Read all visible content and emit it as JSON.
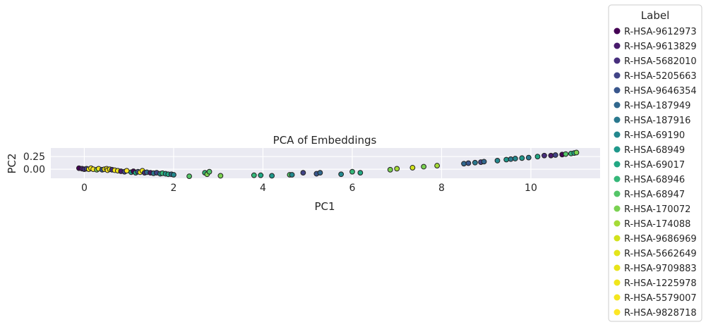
{
  "chart_data": {
    "type": "scatter",
    "title": "PCA of Embeddings",
    "xlabel": "PC1",
    "ylabel": "PC2",
    "xlim": [
      -0.75,
      11.55
    ],
    "ylim": [
      -0.18,
      0.42
    ],
    "xticks": [
      0,
      2,
      4,
      6,
      8,
      10
    ],
    "yticks": [
      0.0,
      0.25
    ],
    "ytick_labels": [
      "0.00",
      "0.25"
    ],
    "grid": true,
    "legend": {
      "title": "Label",
      "placement": "outside-right",
      "entries": [
        {
          "name": "R-HSA-9612973",
          "color": "#440154"
        },
        {
          "name": "R-HSA-9613829",
          "color": "#481a6c"
        },
        {
          "name": "R-HSA-5682010",
          "color": "#472f7d"
        },
        {
          "name": "R-HSA-5205663",
          "color": "#414487"
        },
        {
          "name": "R-HSA-9646354",
          "color": "#39568c"
        },
        {
          "name": "R-HSA-187949",
          "color": "#31688e"
        },
        {
          "name": "R-HSA-187916",
          "color": "#2a788e"
        },
        {
          "name": "R-HSA-69190",
          "color": "#23888e"
        },
        {
          "name": "R-HSA-68949",
          "color": "#1f988b"
        },
        {
          "name": "R-HSA-69017",
          "color": "#22a884"
        },
        {
          "name": "R-HSA-68946",
          "color": "#35b779"
        },
        {
          "name": "R-HSA-68947",
          "color": "#54c568"
        },
        {
          "name": "R-HSA-170072",
          "color": "#7ad151"
        },
        {
          "name": "R-HSA-174088",
          "color": "#a5db36"
        },
        {
          "name": "R-HSA-9686969",
          "color": "#d2e21b"
        },
        {
          "name": "R-HSA-5662649",
          "color": "#e4e51a"
        },
        {
          "name": "R-HSA-9709883",
          "color": "#e8e419"
        },
        {
          "name": "R-HSA-1225978",
          "color": "#f0e61c"
        },
        {
          "name": "R-HSA-5579007",
          "color": "#f4e61e"
        },
        {
          "name": "R-HSA-9828718",
          "color": "#fde725"
        }
      ]
    },
    "points": [
      {
        "x": -0.12,
        "y": 0.02,
        "c": 0
      },
      {
        "x": -0.05,
        "y": 0.01,
        "c": 1
      },
      {
        "x": 0.0,
        "y": 0.0,
        "c": 2
      },
      {
        "x": 0.05,
        "y": 0.01,
        "c": 3
      },
      {
        "x": 0.1,
        "y": 0.0,
        "c": 17
      },
      {
        "x": 0.15,
        "y": 0.02,
        "c": 18
      },
      {
        "x": 0.2,
        "y": 0.0,
        "c": 19
      },
      {
        "x": 0.28,
        "y": -0.01,
        "c": 12
      },
      {
        "x": 0.32,
        "y": 0.01,
        "c": 16
      },
      {
        "x": 0.4,
        "y": -0.01,
        "c": 4
      },
      {
        "x": 0.45,
        "y": 0.0,
        "c": 17
      },
      {
        "x": 0.5,
        "y": 0.01,
        "c": 18
      },
      {
        "x": 0.52,
        "y": -0.02,
        "c": 19
      },
      {
        "x": 0.57,
        "y": 0.0,
        "c": 16
      },
      {
        "x": 0.62,
        "y": -0.01,
        "c": 2
      },
      {
        "x": 0.68,
        "y": -0.02,
        "c": 18
      },
      {
        "x": 0.75,
        "y": -0.03,
        "c": 17
      },
      {
        "x": 0.82,
        "y": -0.04,
        "c": 1
      },
      {
        "x": 0.9,
        "y": -0.05,
        "c": 3
      },
      {
        "x": 0.95,
        "y": -0.03,
        "c": 19
      },
      {
        "x": 1.05,
        "y": -0.06,
        "c": 8
      },
      {
        "x": 1.1,
        "y": -0.04,
        "c": 0
      },
      {
        "x": 1.15,
        "y": -0.07,
        "c": 9
      },
      {
        "x": 1.2,
        "y": -0.05,
        "c": 4
      },
      {
        "x": 1.25,
        "y": -0.06,
        "c": 18
      },
      {
        "x": 1.3,
        "y": -0.03,
        "c": 17
      },
      {
        "x": 1.35,
        "y": -0.07,
        "c": 2
      },
      {
        "x": 1.4,
        "y": -0.06,
        "c": 5
      },
      {
        "x": 1.48,
        "y": -0.07,
        "c": 1
      },
      {
        "x": 1.55,
        "y": -0.08,
        "c": 6
      },
      {
        "x": 1.62,
        "y": -0.07,
        "c": 3
      },
      {
        "x": 1.7,
        "y": -0.09,
        "c": 7
      },
      {
        "x": 1.75,
        "y": -0.08,
        "c": 10
      },
      {
        "x": 1.82,
        "y": -0.09,
        "c": 8
      },
      {
        "x": 1.88,
        "y": -0.1,
        "c": 9
      },
      {
        "x": 1.95,
        "y": -0.1,
        "c": 5
      },
      {
        "x": 2.0,
        "y": -0.11,
        "c": 7
      },
      {
        "x": 2.35,
        "y": -0.14,
        "c": 11
      },
      {
        "x": 2.7,
        "y": -0.07,
        "c": 10
      },
      {
        "x": 2.75,
        "y": -0.1,
        "c": 12
      },
      {
        "x": 2.8,
        "y": -0.05,
        "c": 11
      },
      {
        "x": 3.05,
        "y": -0.13,
        "c": 12
      },
      {
        "x": 3.8,
        "y": -0.12,
        "c": 10
      },
      {
        "x": 3.95,
        "y": -0.12,
        "c": 9
      },
      {
        "x": 4.2,
        "y": -0.13,
        "c": 8
      },
      {
        "x": 4.6,
        "y": -0.11,
        "c": 11
      },
      {
        "x": 4.65,
        "y": -0.11,
        "c": 7
      },
      {
        "x": 4.9,
        "y": -0.07,
        "c": 3
      },
      {
        "x": 5.2,
        "y": -0.09,
        "c": 4
      },
      {
        "x": 5.28,
        "y": -0.07,
        "c": 5
      },
      {
        "x": 5.75,
        "y": -0.1,
        "c": 7
      },
      {
        "x": 6.0,
        "y": -0.05,
        "c": 10
      },
      {
        "x": 6.18,
        "y": -0.07,
        "c": 9
      },
      {
        "x": 6.85,
        "y": -0.01,
        "c": 12
      },
      {
        "x": 7.0,
        "y": 0.01,
        "c": 13
      },
      {
        "x": 7.35,
        "y": 0.03,
        "c": 14
      },
      {
        "x": 7.6,
        "y": 0.05,
        "c": 12
      },
      {
        "x": 7.9,
        "y": 0.07,
        "c": 13
      },
      {
        "x": 8.5,
        "y": 0.11,
        "c": 5
      },
      {
        "x": 8.6,
        "y": 0.12,
        "c": 4
      },
      {
        "x": 8.75,
        "y": 0.13,
        "c": 6
      },
      {
        "x": 8.88,
        "y": 0.14,
        "c": 3
      },
      {
        "x": 8.95,
        "y": 0.15,
        "c": 5
      },
      {
        "x": 9.25,
        "y": 0.17,
        "c": 7
      },
      {
        "x": 9.45,
        "y": 0.19,
        "c": 8
      },
      {
        "x": 9.55,
        "y": 0.2,
        "c": 6
      },
      {
        "x": 9.65,
        "y": 0.21,
        "c": 7
      },
      {
        "x": 9.8,
        "y": 0.22,
        "c": 8
      },
      {
        "x": 9.95,
        "y": 0.23,
        "c": 6
      },
      {
        "x": 10.15,
        "y": 0.25,
        "c": 9
      },
      {
        "x": 10.3,
        "y": 0.27,
        "c": 2
      },
      {
        "x": 10.45,
        "y": 0.27,
        "c": 1
      },
      {
        "x": 10.55,
        "y": 0.28,
        "c": 3
      },
      {
        "x": 10.7,
        "y": 0.29,
        "c": 0
      },
      {
        "x": 10.78,
        "y": 0.3,
        "c": 11
      },
      {
        "x": 10.9,
        "y": 0.31,
        "c": 10
      },
      {
        "x": 10.97,
        "y": 0.32,
        "c": 9
      },
      {
        "x": 11.02,
        "y": 0.33,
        "c": 12
      }
    ]
  }
}
